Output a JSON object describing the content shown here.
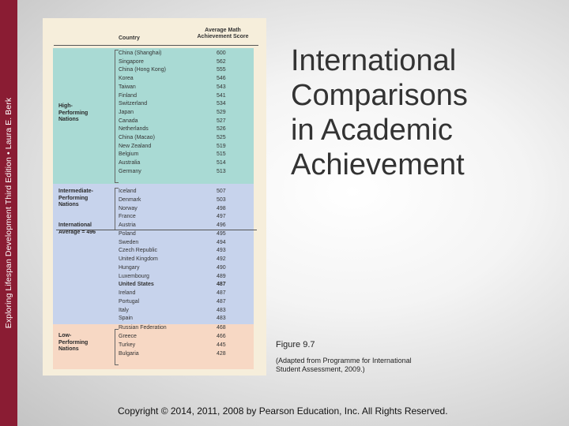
{
  "sidebar": {
    "text": "Exploring Lifespan Development Third Edition • Laura E. Berk",
    "color": "#8a1c33"
  },
  "slide": {
    "title_lines": [
      "International",
      "Comparisons",
      "in Academic",
      "Achievement"
    ]
  },
  "figure": {
    "headers": {
      "country": "Country",
      "score_line1": "Average Math",
      "score_line2": "Achievement Score"
    },
    "groups": {
      "high": [
        "High-",
        "Performing",
        "Nations"
      ],
      "intermediate": [
        "Intermediate-",
        "Performing",
        "Nations"
      ],
      "average": [
        "International",
        "Average = 496"
      ],
      "low": [
        "Low-",
        "Performing",
        "Nations"
      ]
    },
    "rows": [
      {
        "country": "China (Shanghai)",
        "score": "600"
      },
      {
        "country": "Singapore",
        "score": "562"
      },
      {
        "country": "China (Hong Kong)",
        "score": "555"
      },
      {
        "country": "Korea",
        "score": "546"
      },
      {
        "country": "Taiwan",
        "score": "543"
      },
      {
        "country": "Finland",
        "score": "541"
      },
      {
        "country": "Switzerland",
        "score": "534"
      },
      {
        "country": "Japan",
        "score": "529"
      },
      {
        "country": "Canada",
        "score": "527"
      },
      {
        "country": "Netherlands",
        "score": "526"
      },
      {
        "country": "China (Macao)",
        "score": "525"
      },
      {
        "country": "New Zealand",
        "score": "519"
      },
      {
        "country": "Belgium",
        "score": "515"
      },
      {
        "country": "Australia",
        "score": "514"
      },
      {
        "country": "Germany",
        "score": "513"
      },
      {
        "country": "Iceland",
        "score": "507"
      },
      {
        "country": "Denmark",
        "score": "503"
      },
      {
        "country": "Norway",
        "score": "498"
      },
      {
        "country": "France",
        "score": "497"
      },
      {
        "country": "Austria",
        "score": "496"
      },
      {
        "country": "Poland",
        "score": "495"
      },
      {
        "country": "Sweden",
        "score": "494"
      },
      {
        "country": "Czech Republic",
        "score": "493"
      },
      {
        "country": "United Kingdom",
        "score": "492"
      },
      {
        "country": "Hungary",
        "score": "490"
      },
      {
        "country": "Luxembourg",
        "score": "489"
      },
      {
        "country": "United States",
        "score": "487",
        "bold": true
      },
      {
        "country": "Ireland",
        "score": "487"
      },
      {
        "country": "Portugal",
        "score": "487"
      },
      {
        "country": "Italy",
        "score": "483"
      },
      {
        "country": "Spain",
        "score": "483"
      },
      {
        "country": "Russian Federation",
        "score": "468"
      },
      {
        "country": "Greece",
        "score": "466"
      },
      {
        "country": "Turkey",
        "score": "445"
      },
      {
        "country": "Bulgaria",
        "score": "428"
      }
    ],
    "colors": {
      "high": "#a9dad4",
      "intermediate": "#c7d3ec",
      "low": "#f7d8c4",
      "background": "#f6eedb"
    }
  },
  "caption": {
    "figure_label": "Figure 9.7",
    "source_line1": "(Adapted from Programme for International",
    "source_line2": "Student Assessment, 2009.)"
  },
  "copyright": "Copyright © 2014, 2011, 2008 by Pearson Education, Inc. All Rights Reserved."
}
